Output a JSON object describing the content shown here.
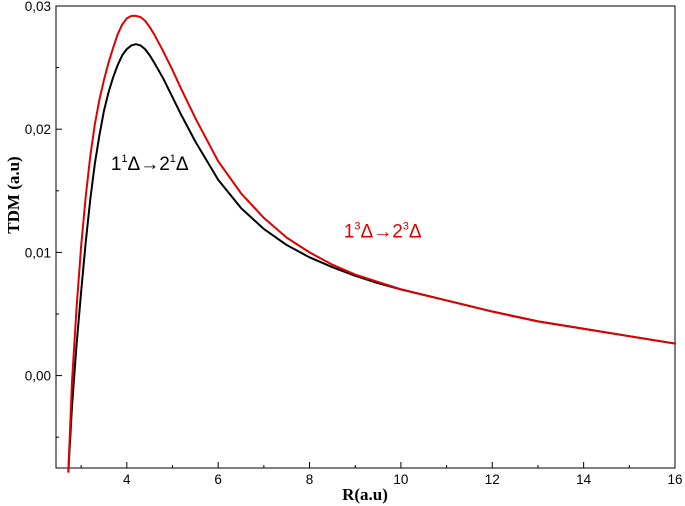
{
  "chart_data": {
    "type": "line",
    "xlabel": "R(a.u)",
    "ylabel": "TDM (a.u)",
    "xlim": [
      2.45,
      16.0
    ],
    "ylim": [
      -0.0075,
      0.03
    ],
    "xticks": [
      4,
      6,
      8,
      10,
      12,
      14,
      16
    ],
    "xtick_labels": [
      "4",
      "6",
      "8",
      "10",
      "12",
      "14",
      "16"
    ],
    "yticks": [
      0.0,
      0.01,
      0.02,
      0.03
    ],
    "ytick_labels": [
      "0,00",
      "0,01",
      "0,02",
      "0,03"
    ],
    "grid": false,
    "series": [
      {
        "color": "#000000",
        "x": [
          2.72,
          2.8,
          2.9,
          3.0,
          3.1,
          3.2,
          3.3,
          3.4,
          3.5,
          3.6,
          3.7,
          3.8,
          3.9,
          4.0,
          4.1,
          4.2,
          4.3,
          4.4,
          4.5,
          4.6,
          4.8,
          5.0,
          5.2,
          5.5,
          6.0,
          6.5,
          7.0,
          7.5,
          8.0,
          8.5,
          9.0,
          9.5,
          10.0,
          11.0,
          12.0,
          13.0,
          14.0,
          15.0,
          16.0
        ],
        "y": [
          -0.0078,
          -0.0025,
          0.0025,
          0.0068,
          0.0108,
          0.0143,
          0.0172,
          0.0195,
          0.0215,
          0.023,
          0.0242,
          0.0252,
          0.026,
          0.0265,
          0.0268,
          0.0269,
          0.0268,
          0.0265,
          0.026,
          0.0254,
          0.0241,
          0.0226,
          0.0211,
          0.019,
          0.0159,
          0.0136,
          0.0119,
          0.0106,
          0.0096,
          0.0088,
          0.0081,
          0.0075,
          0.007,
          0.0061,
          0.0052,
          0.0044,
          0.0038,
          0.0032,
          0.0026
        ]
      },
      {
        "color": "#e00000",
        "x": [
          2.72,
          2.8,
          2.9,
          3.0,
          3.1,
          3.2,
          3.3,
          3.4,
          3.5,
          3.6,
          3.7,
          3.8,
          3.9,
          4.0,
          4.1,
          4.2,
          4.3,
          4.4,
          4.5,
          4.6,
          4.8,
          5.0,
          5.2,
          5.5,
          6.0,
          6.5,
          7.0,
          7.5,
          8.0,
          8.5,
          9.0,
          9.5,
          10.0,
          11.0,
          12.0,
          13.0,
          14.0,
          15.0,
          16.0
        ],
        "y": [
          -0.0078,
          -0.0005,
          0.0055,
          0.0105,
          0.0145,
          0.0178,
          0.0204,
          0.0224,
          0.024,
          0.0254,
          0.0266,
          0.0277,
          0.0285,
          0.029,
          0.0292,
          0.0292,
          0.0291,
          0.0288,
          0.0283,
          0.0277,
          0.0263,
          0.0248,
          0.0232,
          0.0209,
          0.0174,
          0.0148,
          0.0128,
          0.0112,
          0.01,
          0.009,
          0.0082,
          0.0076,
          0.007,
          0.0061,
          0.0052,
          0.0044,
          0.0038,
          0.0032,
          0.0026
        ]
      }
    ],
    "annotations": [
      {
        "color": "#000000",
        "x": 3.65,
        "y": 0.0167,
        "parts": [
          {
            "text": "1",
            "sup": false
          },
          {
            "text": "1",
            "sup": true
          },
          {
            "text": "Δ→2",
            "sup": false
          },
          {
            "text": "1",
            "sup": true
          },
          {
            "text": "Δ",
            "sup": false
          }
        ]
      },
      {
        "color": "#e00000",
        "x": 8.75,
        "y": 0.0112,
        "parts": [
          {
            "text": "1",
            "sup": false
          },
          {
            "text": "3",
            "sup": true
          },
          {
            "text": "Δ→2",
            "sup": false
          },
          {
            "text": "3",
            "sup": true
          },
          {
            "text": "Δ",
            "sup": false
          }
        ]
      }
    ]
  }
}
